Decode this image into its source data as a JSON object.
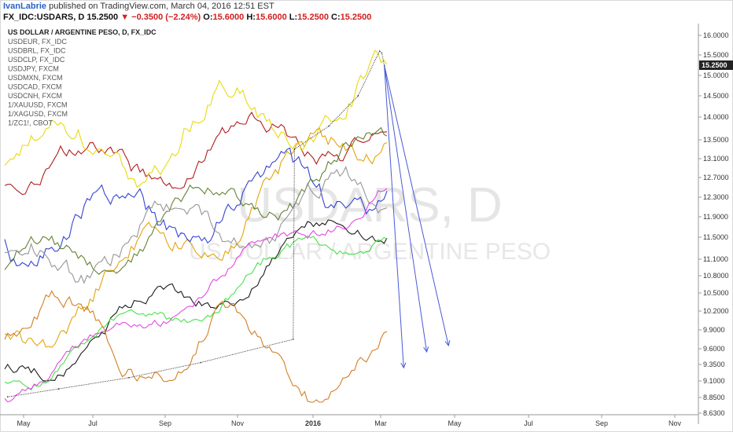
{
  "header": {
    "author": "IvanLabrie",
    "published": " published on TradingView.com, March 04, 2016 12:51 EST",
    "symbol": "FX_IDC:USDARS, D",
    "last": "15.2500",
    "change": "−0.3500 (−2.24%)",
    "ohlc": {
      "O": "15.6000",
      "H": "15.6000",
      "L": "15.2500",
      "C": "15.2500"
    }
  },
  "chart_data": {
    "type": "line",
    "title": "US DOLLAR / ARGENTINE PESO, D, FX_IDC",
    "watermark_main": "USDARS, D",
    "watermark_sub": "US DOLLAR / ARGENTINE PESO",
    "price_label": "15.2500",
    "y_ticks": [
      "16.0000",
      "15.5000",
      "15.0000",
      "14.5000",
      "14.0000",
      "13.5000",
      "13.1000",
      "12.7000",
      "12.3000",
      "11.9000",
      "11.5000",
      "11.1000",
      "10.8000",
      "10.5000",
      "10.2000",
      "9.9000",
      "9.6000",
      "9.3500",
      "9.1000",
      "8.8500",
      "8.6300"
    ],
    "x_ticks": [
      "May",
      "Jul",
      "Sep",
      "Nov",
      "2016",
      "Mar",
      "May",
      "Jul",
      "Sep",
      "Nov"
    ],
    "legend": [
      {
        "label": "USDEUR, FX_IDC",
        "color": "#e0a000"
      },
      {
        "label": "USDBRL, FX_IDC",
        "color": "#2a3bd0"
      },
      {
        "label": "USDCLP, FX_IDC",
        "color": "#b01010"
      },
      {
        "label": "USDJPY, FXCM",
        "color": "#e8d800"
      },
      {
        "label": "USDMXN, FXCM",
        "color": "#5a7a2a"
      },
      {
        "label": "USDCAD, FXCM",
        "color": "#909090"
      },
      {
        "label": "USDCNH, FXCM",
        "color": "#101010"
      },
      {
        "label": "1/XAUUSD, FXCM",
        "color": "#40e040"
      },
      {
        "label": "1/XAGUSD, FXCM",
        "color": "#e040e0"
      },
      {
        "label": "1/ZC1!, CBOT",
        "color": "#d07818"
      }
    ],
    "main_series": {
      "name": "USDARS",
      "color": "#222222",
      "points": [
        [
          "2015-04-17",
          8.86
        ],
        [
          "2015-06-01",
          8.98
        ],
        [
          "2015-08-01",
          9.15
        ],
        [
          "2015-10-01",
          9.38
        ],
        [
          "2015-12-16",
          9.75
        ],
        [
          "2015-12-17",
          13.3
        ],
        [
          "2016-01-15",
          13.8
        ],
        [
          "2016-02-10",
          14.5
        ],
        [
          "2016-02-29",
          15.6
        ],
        [
          "2016-03-02",
          15.55
        ],
        [
          "2016-03-04",
          15.25
        ]
      ]
    },
    "projections": [
      {
        "from": [
          "2016-03-04",
          15.25
        ],
        "to": [
          "2016-03-20",
          9.3
        ]
      },
      {
        "from": [
          "2016-03-04",
          15.25
        ],
        "to": [
          "2016-04-08",
          9.55
        ]
      },
      {
        "from": [
          "2016-03-04",
          15.25
        ],
        "to": [
          "2016-04-26",
          9.65
        ]
      }
    ]
  }
}
